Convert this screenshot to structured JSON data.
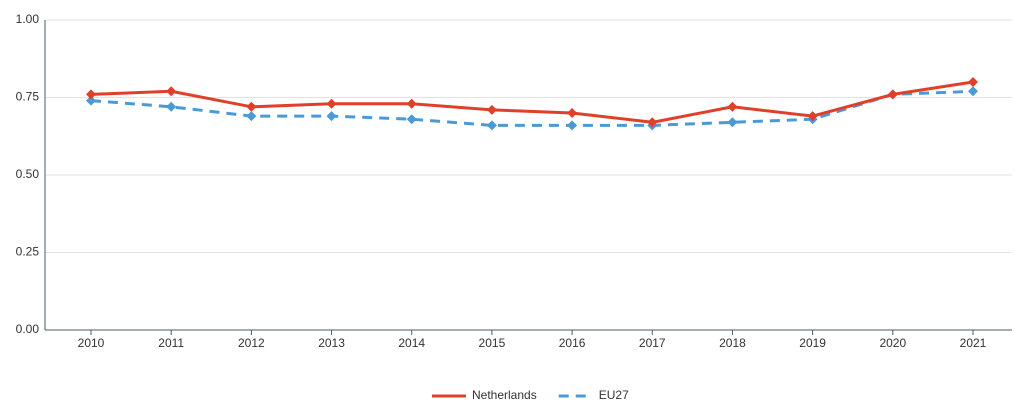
{
  "chart_data": {
    "type": "line",
    "categories": [
      "2010",
      "2011",
      "2012",
      "2013",
      "2014",
      "2015",
      "2016",
      "2017",
      "2018",
      "2019",
      "2020",
      "2021"
    ],
    "series": [
      {
        "name": "Netherlands",
        "color": "#e0402a",
        "dash": false,
        "values": [
          0.76,
          0.77,
          0.72,
          0.73,
          0.73,
          0.71,
          0.7,
          0.67,
          0.72,
          0.69,
          0.76,
          0.8
        ]
      },
      {
        "name": "EU27",
        "color": "#4b9ad5",
        "dash": true,
        "values": [
          0.74,
          0.72,
          0.69,
          0.69,
          0.68,
          0.66,
          0.66,
          0.66,
          0.67,
          0.68,
          0.76,
          0.77
        ]
      }
    ],
    "ylim": [
      0,
      1
    ],
    "yticks": [
      {
        "value": 0,
        "label": "0.00"
      },
      {
        "value": 0.25,
        "label": "0.25"
      },
      {
        "value": 0.5,
        "label": "0.50"
      },
      {
        "value": 0.75,
        "label": "0.75"
      },
      {
        "value": 1,
        "label": "1.00"
      }
    ],
    "grid": true,
    "legend": "bottom"
  }
}
